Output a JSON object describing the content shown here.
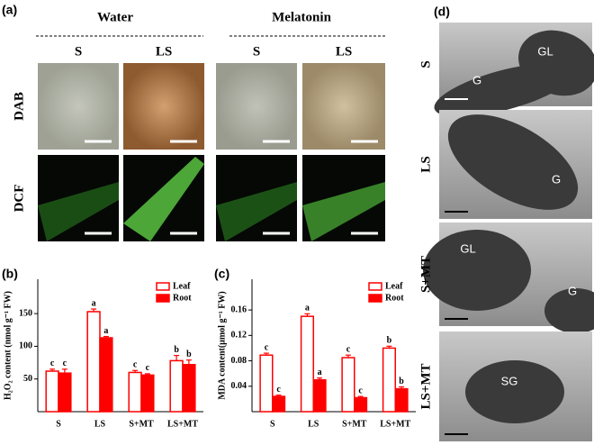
{
  "panel_a": {
    "label": "(a)",
    "groups": [
      "Water",
      "Melatonin"
    ],
    "columns": [
      "S",
      "LS",
      "S",
      "LS"
    ],
    "rows": [
      "DAB",
      "DCF"
    ]
  },
  "panel_d": {
    "label": "(d)",
    "rows": [
      {
        "label": "S",
        "annotations": [
          "G",
          "GL"
        ]
      },
      {
        "label": "LS",
        "annotations": [
          "G"
        ]
      },
      {
        "label": "S+MT",
        "annotations": [
          "GL",
          "G"
        ]
      },
      {
        "label": "LS+MT",
        "annotations": [
          "SG"
        ]
      }
    ]
  },
  "chart_data": [
    {
      "type": "bar",
      "panel_label": "(b)",
      "y_label": "H₂O₂ content (nmol g⁻¹ FW)",
      "categories": [
        "S",
        "LS",
        "S+MT",
        "LS+MT"
      ],
      "series": [
        {
          "name": "Leaf",
          "color": "#ff0000",
          "fill": "#ffffff",
          "values": [
            62,
            153,
            60,
            78
          ],
          "errors": [
            3,
            4,
            3,
            8
          ],
          "letters": [
            "c",
            "a",
            "c",
            "b"
          ]
        },
        {
          "name": "Root",
          "color": "#ff0000",
          "fill": "#ff0000",
          "values": [
            59,
            113,
            56,
            72
          ],
          "errors": [
            6,
            2,
            2,
            7
          ],
          "letters": [
            "c",
            "a",
            "c",
            "b"
          ]
        }
      ],
      "ylim": [
        0,
        175
      ],
      "yticks": [
        50,
        100,
        150
      ],
      "legend": "upper right"
    },
    {
      "type": "bar",
      "panel_label": "(c)",
      "y_label": "MDA content(μmol g⁻¹ FW)",
      "categories": [
        "S",
        "LS",
        "S+MT",
        "LS+MT"
      ],
      "series": [
        {
          "name": "Leaf",
          "color": "#ff0000",
          "fill": "#ffffff",
          "values": [
            0.089,
            0.15,
            0.085,
            0.1
          ],
          "errors": [
            0.003,
            0.004,
            0.004,
            0.003
          ],
          "letters": [
            "c",
            "a",
            "c",
            "b"
          ]
        },
        {
          "name": "Root",
          "color": "#ff0000",
          "fill": "#ff0000",
          "values": [
            0.024,
            0.05,
            0.022,
            0.036
          ],
          "errors": [
            0.002,
            0.003,
            0.002,
            0.003
          ],
          "letters": [
            "c",
            "a",
            "c",
            "b"
          ]
        }
      ],
      "ylim": [
        0,
        0.18
      ],
      "yticks": [
        0.04,
        0.08,
        0.12,
        0.16
      ],
      "legend": "upper right"
    }
  ]
}
